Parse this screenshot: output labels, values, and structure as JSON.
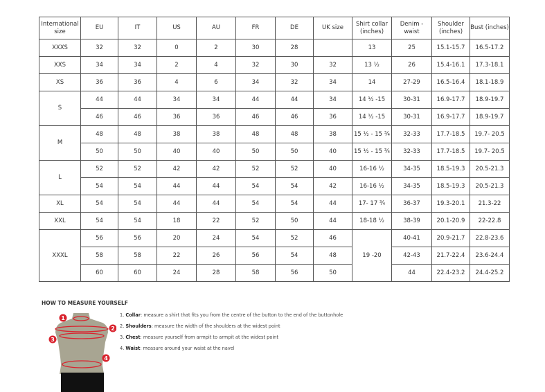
{
  "headers": [
    "International size",
    "EU",
    "IT",
    "US",
    "AU",
    "FR",
    "DE",
    "UK size",
    "Shirt collar (inches)",
    "Denim - waist",
    "Shoulder (inches)",
    "Bust (inches)"
  ],
  "groups": [
    {
      "size": "XXXS",
      "rows": [
        [
          "32",
          "32",
          "0",
          "2",
          "30",
          "28",
          "",
          "13",
          "25",
          "15.1-15.7",
          "16.5-17.2"
        ]
      ]
    },
    {
      "size": "XXS",
      "rows": [
        [
          "34",
          "34",
          "2",
          "4",
          "32",
          "30",
          "32",
          "13 ½",
          "26",
          "15.4-16.1",
          "17.3-18.1"
        ]
      ]
    },
    {
      "size": "XS",
      "rows": [
        [
          "36",
          "36",
          "4",
          "6",
          "34",
          "32",
          "34",
          "14",
          "27-29",
          "16.5-16.4",
          "18.1-18.9"
        ]
      ]
    },
    {
      "size": "S",
      "rows": [
        [
          "44",
          "44",
          "34",
          "34",
          "44",
          "44",
          "34",
          "14 ½ -15",
          "30-31",
          "16.9-17.7",
          "18.9-19.7"
        ],
        [
          "46",
          "46",
          "36",
          "36",
          "46",
          "46",
          "36",
          "14 ½ -15",
          "30-31",
          "16.9-17.7",
          "18.9-19.7"
        ]
      ]
    },
    {
      "size": "M",
      "rows": [
        [
          "48",
          "48",
          "38",
          "38",
          "48",
          "48",
          "38",
          "15 ½ - 15 ¾",
          "32-33",
          "17.7-18.5",
          "19.7- 20.5"
        ],
        [
          "50",
          "50",
          "40",
          "40",
          "50",
          "50",
          "40",
          "15 ½ - 15 ¾",
          "32-33",
          "17.7-18.5",
          "19.7- 20.5"
        ]
      ]
    },
    {
      "size": "L",
      "rows": [
        [
          "52",
          "52",
          "42",
          "42",
          "52",
          "52",
          "40",
          "16-16 ½",
          "34-35",
          "18.5-19.3",
          "20.5-21.3"
        ],
        [
          "54",
          "54",
          "44",
          "44",
          "54",
          "54",
          "42",
          "16-16 ½",
          "34-35",
          "18.5-19.3",
          "20.5-21.3"
        ]
      ]
    },
    {
      "size": "XL",
      "rows": [
        [
          "54",
          "54",
          "44",
          "44",
          "54",
          "54",
          "44",
          "17- 17 ¾",
          "36-37",
          "19.3-20.1",
          "21.3-22"
        ]
      ]
    },
    {
      "size": "XXL",
      "rows": [
        [
          "54",
          "54",
          "18",
          "22",
          "52",
          "50",
          "44",
          "18-18 ½",
          "38-39",
          "20.1-20.9",
          "22-22.8"
        ]
      ]
    },
    {
      "size": "XXXL",
      "shared_collar": "19 -20",
      "rows": [
        [
          "56",
          "56",
          "20",
          "24",
          "54",
          "52",
          "46",
          null,
          "40-41",
          "20.9-21.7",
          "22.8-23.6"
        ],
        [
          "58",
          "58",
          "22",
          "26",
          "56",
          "54",
          "48",
          null,
          "42-43",
          "21.7-22.4",
          "23.6-24.4"
        ],
        [
          "60",
          "60",
          "24",
          "28",
          "58",
          "56",
          "50",
          null,
          "44",
          "22.4-23.2",
          "24.4-25.2"
        ]
      ]
    }
  ],
  "howto": {
    "title": "HOW TO MEASURE YOURSELF",
    "steps": [
      {
        "num": "1.",
        "term": "Collar",
        "text": ": measure a shirt that fits you from the centre of the button to the end of the buttonhole"
      },
      {
        "num": "2.",
        "term": "Shoulders",
        "text": ": measure the width of the shoulders at the widest point"
      },
      {
        "num": "3.",
        "term": "Chest",
        "text": ": measure yourself from armpit to armpit at the widest point"
      },
      {
        "num": "4.",
        "term": "Waist",
        "text": ": measure around your waist at the navel"
      }
    ],
    "markers": [
      "1",
      "2",
      "3",
      "4"
    ],
    "colors": {
      "marker": "#d9232e",
      "torso": "#a8a592",
      "shorts": "#111111"
    }
  }
}
